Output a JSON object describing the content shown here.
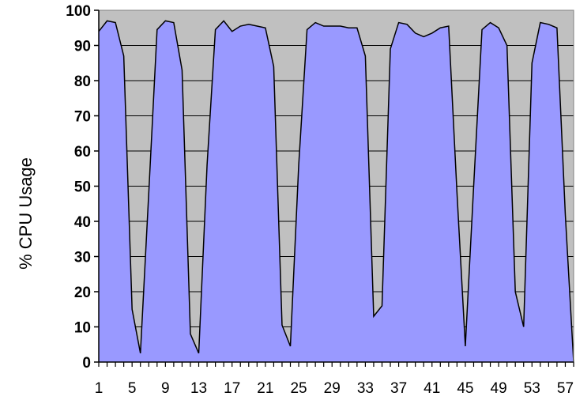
{
  "chart_data": {
    "type": "area",
    "ylabel": "% CPU Usage",
    "xlabel": "",
    "ylim": [
      0,
      100
    ],
    "xlim": [
      1,
      58
    ],
    "y_ticks": [
      0,
      10,
      20,
      30,
      40,
      50,
      60,
      70,
      80,
      90,
      100
    ],
    "x_tick_labels": [
      1,
      5,
      9,
      13,
      17,
      21,
      25,
      29,
      33,
      37,
      41,
      45,
      49,
      53,
      57
    ],
    "grid": true,
    "legend": "none",
    "colors": {
      "plot_background": "#c0c0c0",
      "area_fill": "#9999ff",
      "line": "#000000",
      "grid": "#000000"
    },
    "x": [
      1,
      2,
      3,
      4,
      5,
      6,
      7,
      8,
      9,
      10,
      11,
      12,
      13,
      14,
      15,
      16,
      17,
      18,
      19,
      20,
      21,
      22,
      23,
      24,
      25,
      26,
      27,
      28,
      29,
      30,
      31,
      32,
      33,
      34,
      35,
      36,
      37,
      38,
      39,
      40,
      41,
      42,
      43,
      44,
      45,
      46,
      47,
      48,
      49,
      50,
      51,
      52,
      53,
      54,
      55,
      56,
      57,
      58
    ],
    "values": [
      94,
      97,
      96.5,
      87,
      15,
      2.5,
      48,
      94.5,
      97,
      96.5,
      83,
      8,
      2.5,
      56,
      94.5,
      97,
      94,
      95.5,
      96,
      95.5,
      95,
      84,
      10.5,
      4.5,
      56,
      94.5,
      96.5,
      95.5,
      95.5,
      95.5,
      95,
      95,
      87,
      13,
      16,
      89,
      96.5,
      96,
      93.5,
      92.5,
      93.5,
      95,
      95.5,
      48,
      4.5,
      50,
      94.5,
      96.5,
      95,
      90,
      20,
      10,
      85,
      96.5,
      96,
      95,
      42,
      0
    ]
  }
}
